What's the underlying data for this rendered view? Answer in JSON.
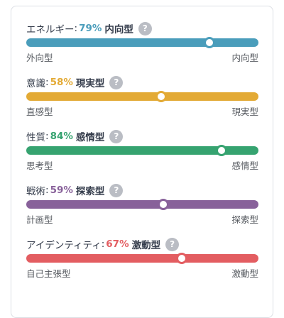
{
  "traits": [
    {
      "name": "エネルギー",
      "percent_label": "79%",
      "percent": 79,
      "type": "内向型",
      "left": "外向型",
      "right": "内向型",
      "color": "#4a9dbb",
      "help_icon": "help-icon",
      "help_glyph": "?"
    },
    {
      "name": "意識",
      "percent_label": "58%",
      "percent": 58,
      "type": "現実型",
      "left": "直感型",
      "right": "現実型",
      "color": "#e3aa35",
      "help_icon": "help-icon",
      "help_glyph": "?"
    },
    {
      "name": "性質",
      "percent_label": "84%",
      "percent": 84,
      "type": "感情型",
      "left": "思考型",
      "right": "感情型",
      "color": "#36a370",
      "help_icon": "help-icon",
      "help_glyph": "?"
    },
    {
      "name": "戦術",
      "percent_label": "59%",
      "percent": 59,
      "type": "探索型",
      "left": "計画型",
      "right": "探索型",
      "color": "#88619a",
      "help_icon": "help-icon",
      "help_glyph": "?"
    },
    {
      "name": "アイデンティティ",
      "percent_label": "67%",
      "percent": 67,
      "type": "激動型",
      "left": "自己主張型",
      "right": "激動型",
      "color": "#e35d61",
      "help_icon": "help-icon",
      "help_glyph": "?"
    }
  ],
  "separator": ":"
}
